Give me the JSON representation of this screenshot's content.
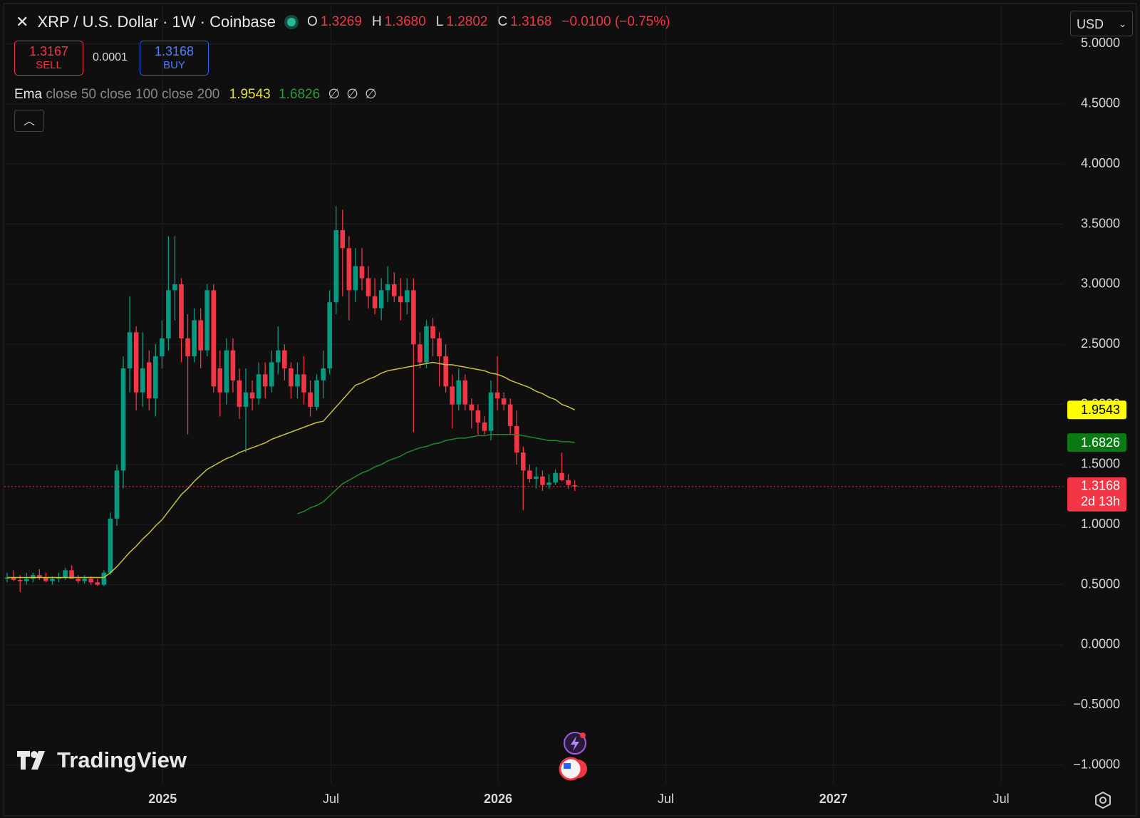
{
  "header": {
    "title": "XRP / U.S. Dollar · 1W · Coinbase",
    "ohlc": [
      {
        "label": "O",
        "value": "1.3269"
      },
      {
        "label": "H",
        "value": "1.3680"
      },
      {
        "label": "L",
        "value": "1.2802"
      },
      {
        "label": "C",
        "value": "1.3168"
      }
    ],
    "change": "−0.0100 (−0.75%)",
    "currency": "USD"
  },
  "trade": {
    "sell_price": "1.3167",
    "sell": "SELL",
    "spread": "0.0001",
    "buy_price": "1.3168",
    "buy": "BUY"
  },
  "indicator": {
    "name": "Ema",
    "params": "close 50 close 100 close 200",
    "values": [
      "1.9543",
      "1.6826"
    ],
    "empty": [
      "∅",
      "∅",
      "∅"
    ]
  },
  "brand": "TradingView",
  "chart_data": {
    "type": "candlestick",
    "up_color": "#089981",
    "down_color": "#f23645",
    "grid": true,
    "ohlc": [
      [
        0.55,
        0.6,
        0.52,
        0.56
      ],
      [
        0.56,
        0.62,
        0.53,
        0.54
      ],
      [
        0.54,
        0.58,
        0.44,
        0.53
      ],
      [
        0.53,
        0.6,
        0.5,
        0.55
      ],
      [
        0.55,
        0.6,
        0.52,
        0.58
      ],
      [
        0.58,
        0.63,
        0.54,
        0.56
      ],
      [
        0.56,
        0.6,
        0.52,
        0.53
      ],
      [
        0.53,
        0.57,
        0.5,
        0.55
      ],
      [
        0.55,
        0.6,
        0.52,
        0.56
      ],
      [
        0.56,
        0.64,
        0.54,
        0.62
      ],
      [
        0.62,
        0.66,
        0.55,
        0.55
      ],
      [
        0.55,
        0.58,
        0.51,
        0.53
      ],
      [
        0.53,
        0.58,
        0.51,
        0.55
      ],
      [
        0.55,
        0.57,
        0.5,
        0.52
      ],
      [
        0.52,
        0.55,
        0.49,
        0.5
      ],
      [
        0.5,
        0.62,
        0.49,
        0.6
      ],
      [
        0.6,
        1.1,
        0.58,
        1.05
      ],
      [
        1.05,
        1.5,
        0.99,
        1.45
      ],
      [
        1.45,
        2.4,
        1.3,
        2.3
      ],
      [
        2.3,
        2.9,
        2.1,
        2.6
      ],
      [
        2.6,
        2.65,
        1.95,
        2.1
      ],
      [
        2.1,
        2.6,
        1.98,
        2.3
      ],
      [
        2.35,
        2.45,
        1.95,
        2.05
      ],
      [
        2.05,
        2.5,
        1.9,
        2.4
      ],
      [
        2.4,
        2.7,
        2.3,
        2.55
      ],
      [
        2.55,
        3.4,
        2.45,
        2.95
      ],
      [
        2.95,
        3.4,
        2.7,
        3.0
      ],
      [
        3.0,
        3.05,
        2.35,
        2.55
      ],
      [
        2.55,
        2.75,
        1.75,
        2.4
      ],
      [
        2.4,
        2.8,
        2.35,
        2.7
      ],
      [
        2.7,
        2.8,
        2.3,
        2.45
      ],
      [
        2.45,
        3.0,
        2.4,
        2.95
      ],
      [
        2.95,
        3.0,
        2.1,
        2.15
      ],
      [
        2.3,
        2.45,
        1.9,
        2.1
      ],
      [
        2.1,
        2.55,
        2.0,
        2.45
      ],
      [
        2.45,
        2.55,
        2.1,
        2.2
      ],
      [
        2.2,
        2.3,
        1.88,
        1.98
      ],
      [
        1.98,
        2.3,
        1.6,
        2.1
      ],
      [
        2.1,
        2.2,
        1.95,
        2.05
      ],
      [
        2.05,
        2.35,
        2.0,
        2.25
      ],
      [
        2.25,
        2.35,
        2.05,
        2.15
      ],
      [
        2.15,
        2.45,
        2.1,
        2.35
      ],
      [
        2.35,
        2.65,
        2.25,
        2.45
      ],
      [
        2.45,
        2.5,
        2.2,
        2.3
      ],
      [
        2.3,
        2.35,
        2.05,
        2.15
      ],
      [
        2.15,
        2.35,
        2.05,
        2.25
      ],
      [
        2.25,
        2.4,
        2.0,
        2.1
      ],
      [
        2.1,
        2.2,
        1.9,
        1.98
      ],
      [
        1.98,
        2.25,
        1.95,
        2.2
      ],
      [
        2.2,
        2.45,
        2.05,
        2.3
      ],
      [
        2.3,
        2.95,
        2.25,
        2.85
      ],
      [
        2.85,
        3.65,
        2.75,
        3.45
      ],
      [
        3.45,
        3.62,
        2.9,
        3.3
      ],
      [
        3.3,
        3.4,
        2.7,
        2.95
      ],
      [
        2.95,
        3.3,
        2.85,
        3.15
      ],
      [
        3.15,
        3.3,
        2.95,
        3.05
      ],
      [
        3.05,
        3.15,
        2.8,
        2.9
      ],
      [
        2.9,
        3.05,
        2.75,
        2.8
      ],
      [
        2.8,
        3.05,
        2.7,
        2.95
      ],
      [
        2.95,
        3.15,
        2.85,
        3.0
      ],
      [
        3.0,
        3.1,
        2.85,
        2.9
      ],
      [
        2.9,
        3.05,
        2.7,
        2.85
      ],
      [
        2.85,
        3.05,
        2.75,
        2.95
      ],
      [
        2.95,
        3.05,
        1.77,
        2.5
      ],
      [
        2.5,
        2.6,
        2.3,
        2.35
      ],
      [
        2.35,
        2.7,
        2.3,
        2.65
      ],
      [
        2.65,
        2.72,
        2.4,
        2.55
      ],
      [
        2.55,
        2.6,
        2.15,
        2.4
      ],
      [
        2.4,
        2.5,
        2.1,
        2.15
      ],
      [
        2.15,
        2.25,
        1.8,
        2.0
      ],
      [
        2.0,
        2.3,
        1.95,
        2.2
      ],
      [
        2.2,
        2.25,
        1.95,
        2.0
      ],
      [
        2.0,
        2.05,
        1.8,
        1.95
      ],
      [
        1.95,
        2.0,
        1.75,
        1.85
      ],
      [
        1.85,
        1.9,
        1.75,
        1.78
      ],
      [
        1.78,
        2.2,
        1.7,
        2.1
      ],
      [
        2.1,
        2.4,
        1.95,
        2.05
      ],
      [
        2.05,
        2.1,
        1.95,
        2.0
      ],
      [
        2.0,
        2.05,
        1.75,
        1.82
      ],
      [
        1.82,
        1.95,
        1.5,
        1.6
      ],
      [
        1.6,
        1.65,
        1.12,
        1.45
      ],
      [
        1.45,
        1.5,
        1.35,
        1.38
      ],
      [
        1.38,
        1.48,
        1.3,
        1.4
      ],
      [
        1.4,
        1.45,
        1.28,
        1.33
      ],
      [
        1.33,
        1.42,
        1.3,
        1.35
      ],
      [
        1.35,
        1.46,
        1.33,
        1.43
      ],
      [
        1.43,
        1.6,
        1.36,
        1.37
      ],
      [
        1.37,
        1.42,
        1.3,
        1.33
      ],
      [
        1.3269,
        1.368,
        1.2802,
        1.3168
      ]
    ],
    "series": [
      {
        "color": "#c8c040",
        "values": [
          0.56,
          0.56,
          0.56,
          0.56,
          0.56,
          0.56,
          0.56,
          0.56,
          0.56,
          0.56,
          0.56,
          0.56,
          0.56,
          0.56,
          0.56,
          0.56,
          0.6,
          0.65,
          0.71,
          0.77,
          0.82,
          0.88,
          0.93,
          0.99,
          1.04,
          1.11,
          1.18,
          1.25,
          1.3,
          1.36,
          1.41,
          1.46,
          1.49,
          1.52,
          1.55,
          1.57,
          1.6,
          1.62,
          1.64,
          1.66,
          1.68,
          1.71,
          1.73,
          1.75,
          1.77,
          1.79,
          1.81,
          1.83,
          1.85,
          1.86,
          1.92,
          1.98,
          2.04,
          2.1,
          2.16,
          2.18,
          2.21,
          2.23,
          2.26,
          2.28,
          2.29,
          2.3,
          2.31,
          2.32,
          2.33,
          2.34,
          2.35,
          2.34,
          2.33,
          2.33,
          2.32,
          2.31,
          2.3,
          2.29,
          2.28,
          2.26,
          2.25,
          2.23,
          2.2,
          2.18,
          2.16,
          2.14,
          2.11,
          2.09,
          2.06,
          2.04,
          2.0,
          1.98,
          1.9543
        ]
      },
      {
        "color": "#1f8a2a",
        "values": [
          null,
          null,
          null,
          null,
          null,
          null,
          null,
          null,
          null,
          null,
          null,
          null,
          null,
          null,
          null,
          null,
          null,
          null,
          null,
          null,
          null,
          null,
          null,
          null,
          null,
          null,
          null,
          null,
          null,
          null,
          null,
          null,
          null,
          null,
          null,
          null,
          null,
          null,
          null,
          null,
          null,
          null,
          null,
          null,
          null,
          1.09,
          1.11,
          1.14,
          1.16,
          1.19,
          1.24,
          1.29,
          1.34,
          1.37,
          1.4,
          1.43,
          1.45,
          1.48,
          1.5,
          1.53,
          1.55,
          1.57,
          1.6,
          1.62,
          1.64,
          1.65,
          1.67,
          1.68,
          1.7,
          1.71,
          1.72,
          1.72,
          1.73,
          1.74,
          1.74,
          1.75,
          1.75,
          1.75,
          1.75,
          1.75,
          1.74,
          1.73,
          1.72,
          1.71,
          1.7,
          1.7,
          1.69,
          1.69,
          1.6826
        ]
      }
    ],
    "price_labels": [
      {
        "value": 1.9543,
        "color": "#ffff00",
        "text_color": "#000000"
      },
      {
        "value": 1.6826,
        "color": "#0a7a12",
        "text_color": "#ffffff"
      },
      {
        "value": 1.3168,
        "sub": "2d 13h",
        "color": "#f23645",
        "text_color": "#ffffff"
      }
    ],
    "xlim": [
      -0.45,
      163.7
    ],
    "xticks": [
      {
        "value": 24.1,
        "label": "2025"
      },
      {
        "value": 50.2,
        "label": "Jul"
      },
      {
        "value": 76.1,
        "label": "2026"
      },
      {
        "value": 102.1,
        "label": "Jul"
      },
      {
        "value": 128.1,
        "label": "2027"
      },
      {
        "value": 154.1,
        "label": "Jul"
      }
    ],
    "ylim": [
      -1.156,
      5.317
    ],
    "yticks": [
      {
        "value": 5,
        "label": "5.0000"
      },
      {
        "value": 4.5,
        "label": "4.5000"
      },
      {
        "value": 4,
        "label": "4.0000"
      },
      {
        "value": 3.5,
        "label": "3.5000"
      },
      {
        "value": 3,
        "label": "3.0000"
      },
      {
        "value": 2.5,
        "label": "2.5000"
      },
      {
        "value": 2,
        "label": "2.0000"
      },
      {
        "value": 1.5,
        "label": "1.5000"
      },
      {
        "value": 1,
        "label": "1.0000"
      },
      {
        "value": 0.5,
        "label": "0.5000"
      },
      {
        "value": 0,
        "label": "0.0000"
      },
      {
        "value": -0.5,
        "label": "−0.5000"
      },
      {
        "value": -1,
        "label": "−1.0000"
      }
    ]
  }
}
